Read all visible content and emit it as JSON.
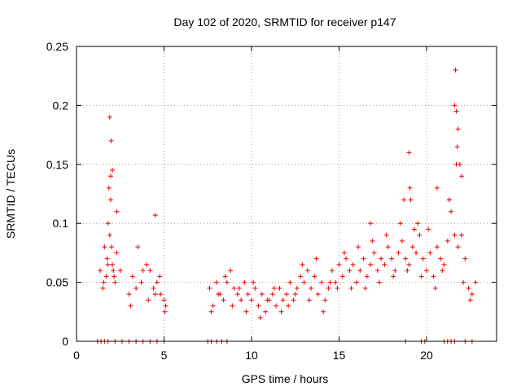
{
  "colors": {
    "series": "#ee0000",
    "grid": "#a0a0a0",
    "axis": "#000000"
  },
  "chart_data": {
    "type": "scatter",
    "title": "Day 102 of 2020, SRMTID for receiver p147",
    "xlabel": "GPS time / hours",
    "ylabel": "SRMTID / TECUs",
    "xlim": [
      0,
      24
    ],
    "ylim": [
      0,
      0.25
    ],
    "xticks": [
      0,
      5,
      10,
      15,
      20
    ],
    "yticks": [
      0,
      0.05,
      0.1,
      0.15,
      0.2,
      0.25
    ],
    "xtick_labels": [
      "0",
      "5",
      "10",
      "15",
      "20"
    ],
    "ytick_labels": [
      "0",
      "0.05",
      "0.1",
      "0.15",
      "0.2",
      "0.25"
    ],
    "grid": true,
    "marker": "+",
    "series": [
      {
        "name": "p147",
        "x": [
          1.35,
          1.55,
          1.6,
          1.7,
          1.75,
          1.8,
          1.85,
          1.9,
          1.95,
          2.0,
          2.05,
          2.1,
          2.2,
          2.3,
          2.5,
          3.0,
          3.2,
          3.5,
          3.7,
          4.0,
          4.2,
          4.4,
          4.6,
          4.8,
          5.0,
          5.1,
          7.6,
          7.8,
          8.0,
          8.2,
          8.4,
          8.6,
          8.8,
          9.0,
          9.2,
          9.4,
          9.6,
          9.8,
          10.0,
          10.2,
          10.4,
          10.6,
          10.8,
          11.0,
          11.2,
          11.4,
          11.6,
          11.8,
          12.0,
          12.2,
          12.4,
          12.6,
          12.8,
          13.0,
          13.2,
          13.4,
          13.6,
          13.8,
          14.0,
          14.2,
          14.4,
          14.6,
          14.8,
          15.0,
          15.2,
          15.4,
          15.6,
          15.8,
          16.0,
          16.2,
          16.4,
          16.6,
          16.8,
          17.0,
          17.2,
          17.4,
          17.6,
          17.8,
          18.0,
          18.2,
          18.4,
          18.6,
          18.8,
          19.0,
          19.2,
          19.4,
          19.6,
          19.8,
          20.0,
          20.2,
          20.4,
          20.6,
          20.8,
          21.0,
          21.2,
          21.4,
          21.6,
          21.8,
          22.0,
          22.2,
          22.4,
          22.6,
          22.8,
          1.5,
          1.8,
          1.95,
          2.15,
          2.3,
          3.1,
          3.4,
          3.8,
          4.1,
          4.5,
          4.75,
          5.05,
          7.7,
          8.1,
          8.5,
          8.9,
          9.3,
          9.7,
          10.1,
          10.5,
          10.9,
          11.3,
          11.7,
          12.1,
          12.5,
          12.9,
          13.3,
          13.7,
          14.1,
          14.5,
          14.9,
          15.3,
          15.7,
          16.1,
          16.5,
          16.9,
          17.3,
          17.7,
          18.1,
          18.5,
          18.9,
          19.3,
          19.7,
          20.1,
          20.5,
          20.9,
          21.3,
          21.7,
          22.1,
          22.5,
          1.9,
          1.98,
          2.05,
          21.6,
          21.65,
          21.7,
          21.75,
          21.8,
          21.9,
          22.0,
          19.0,
          19.05,
          19.1,
          18.7,
          19.5,
          20.6,
          21.3,
          16.8,
          4.5,
          1.2,
          1.4,
          1.6,
          1.8,
          2.2,
          2.6,
          3.0,
          3.4,
          3.8,
          4.2,
          4.6,
          5.0,
          7.5,
          7.7,
          8.0,
          8.3,
          8.6,
          18.8,
          19.7,
          19.9,
          21.0,
          21.2,
          21.4,
          21.6,
          22.2,
          22.6
        ],
        "y": [
          0.06,
          0.05,
          0.08,
          0.055,
          0.07,
          0.1,
          0.13,
          0.09,
          0.12,
          0.08,
          0.065,
          0.06,
          0.05,
          0.11,
          0.06,
          0.04,
          0.055,
          0.08,
          0.05,
          0.065,
          0.06,
          0.045,
          0.05,
          0.04,
          0.035,
          0.03,
          0.045,
          0.03,
          0.05,
          0.04,
          0.035,
          0.05,
          0.06,
          0.045,
          0.04,
          0.035,
          0.05,
          0.04,
          0.035,
          0.045,
          0.03,
          0.04,
          0.025,
          0.035,
          0.04,
          0.03,
          0.045,
          0.035,
          0.04,
          0.05,
          0.035,
          0.045,
          0.055,
          0.05,
          0.06,
          0.045,
          0.055,
          0.04,
          0.05,
          0.035,
          0.045,
          0.06,
          0.05,
          0.065,
          0.055,
          0.07,
          0.06,
          0.065,
          0.05,
          0.06,
          0.07,
          0.055,
          0.065,
          0.075,
          0.06,
          0.07,
          0.065,
          0.08,
          0.07,
          0.06,
          0.075,
          0.085,
          0.07,
          0.065,
          0.08,
          0.075,
          0.09,
          0.07,
          0.06,
          0.075,
          0.055,
          0.08,
          0.07,
          0.065,
          0.085,
          0.11,
          0.09,
          0.08,
          0.09,
          0.07,
          0.045,
          0.04,
          0.05,
          0.045,
          0.065,
          0.14,
          0.055,
          0.075,
          0.03,
          0.045,
          0.06,
          0.035,
          0.04,
          0.055,
          0.025,
          0.025,
          0.04,
          0.055,
          0.03,
          0.045,
          0.025,
          0.05,
          0.02,
          0.035,
          0.045,
          0.025,
          0.03,
          0.04,
          0.065,
          0.035,
          0.07,
          0.025,
          0.05,
          0.045,
          0.075,
          0.045,
          0.08,
          0.045,
          0.085,
          0.05,
          0.09,
          0.055,
          0.1,
          0.06,
          0.095,
          0.055,
          0.095,
          0.045,
          0.06,
          0.12,
          0.15,
          0.05,
          0.035,
          0.19,
          0.17,
          0.145,
          0.2,
          0.23,
          0.195,
          0.165,
          0.18,
          0.15,
          0.14,
          0.16,
          0.13,
          0.12,
          0.12,
          0.1,
          0.13,
          0.12,
          0.1,
          0.107,
          0.0,
          0.0,
          0.0,
          0.0,
          0.0,
          0.0,
          0.0,
          0.0,
          0.0,
          0.0,
          0.0,
          0.0,
          0.0,
          0.0,
          0.0,
          0.0,
          0.0,
          0.0,
          0.0,
          0.0,
          0.0,
          0.0,
          0.0,
          0.0,
          0.0,
          0.0
        ]
      }
    ]
  }
}
